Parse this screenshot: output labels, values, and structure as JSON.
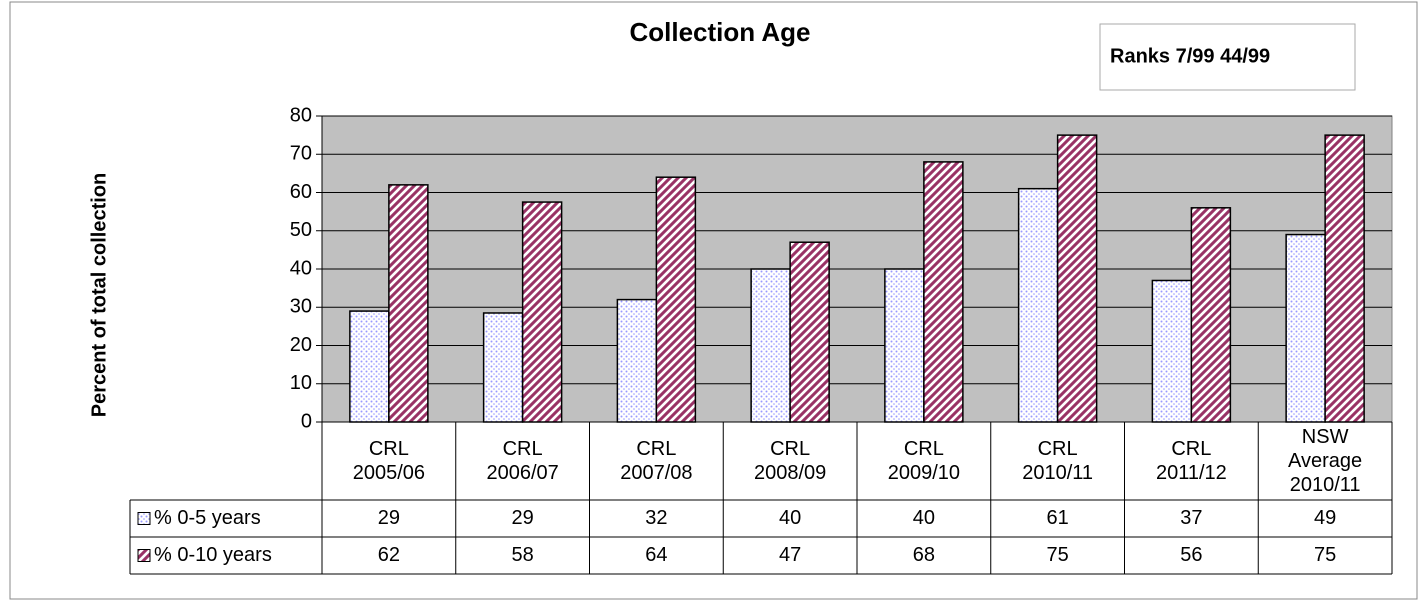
{
  "chart_data": {
    "type": "bar",
    "title": "Collection Age",
    "annotation": "Ranks 7/99 44/99",
    "y_label": "Percent of total collection",
    "categories": [
      "CRL 2005/06",
      "CRL 2006/07",
      "CRL 2007/08",
      "CRL 2008/09",
      "CRL 2009/10",
      "CRL 2010/11",
      "CRL 2011/12",
      "NSW Average 2010/11"
    ],
    "series": [
      {
        "name": "% 0-5 years",
        "color": "#9999ff",
        "values": [
          29,
          28.5,
          32,
          40,
          40,
          61,
          37,
          49
        ],
        "value_labels": [
          "29",
          "29",
          "32",
          "40",
          "40",
          "61",
          "37",
          "49"
        ]
      },
      {
        "name": "% 0-10 years",
        "color": "#993366",
        "values": [
          62,
          57.5,
          64,
          47,
          68,
          75,
          56,
          75
        ],
        "value_labels": [
          "62",
          "58",
          "64",
          "47",
          "68",
          "75",
          "56",
          "75"
        ]
      }
    ],
    "ylim": [
      0,
      80
    ],
    "yticks": [
      0,
      10,
      20,
      30,
      40,
      50,
      60,
      70,
      80
    ],
    "grid": true
  }
}
